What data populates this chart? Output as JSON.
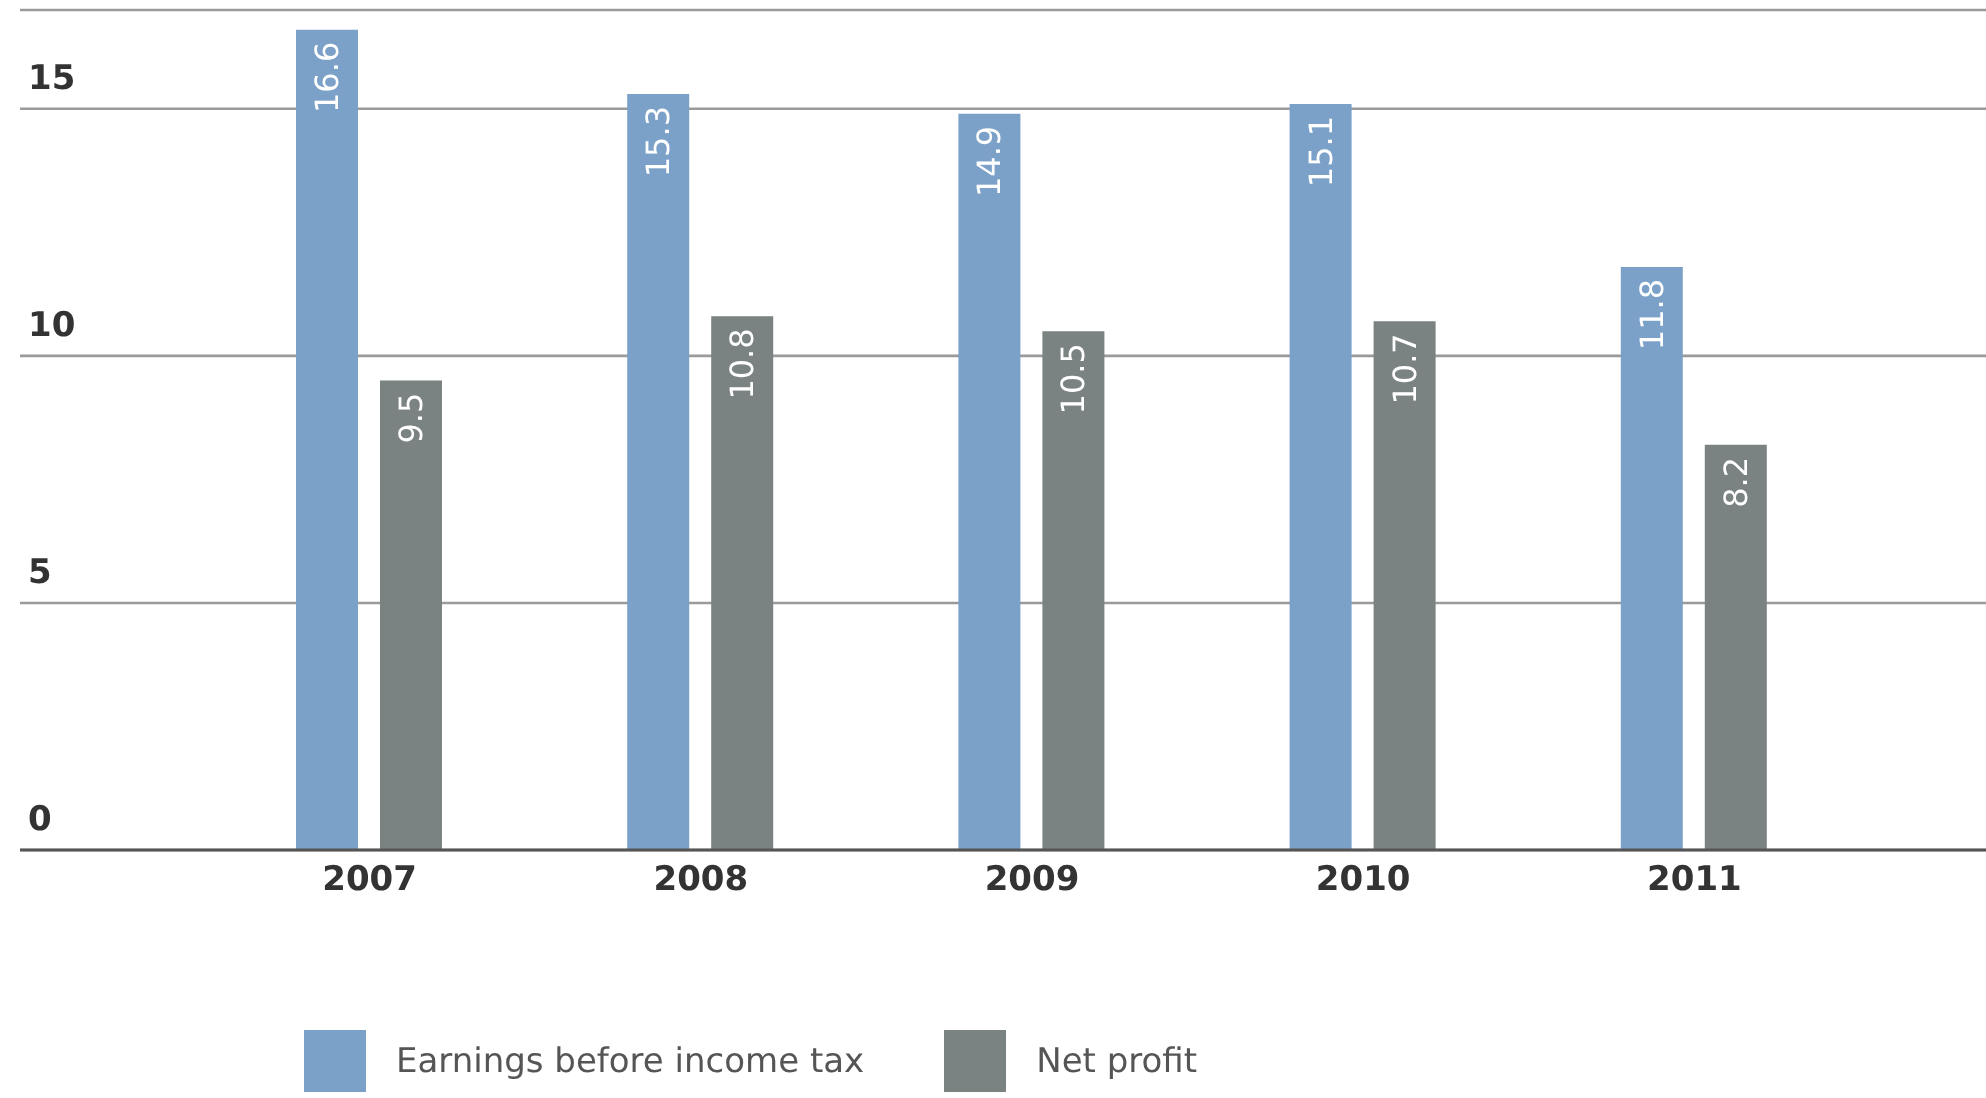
{
  "chart_data": {
    "type": "bar",
    "categories": [
      "2007",
      "2008",
      "2009",
      "2010",
      "2011"
    ],
    "series": [
      {
        "name": "Earnings before income tax",
        "color": "#7ba1c9",
        "values": [
          16.6,
          15.3,
          14.9,
          15.1,
          11.8
        ]
      },
      {
        "name": "Net profit",
        "color": "#7a8282",
        "values": [
          9.5,
          10.8,
          10.5,
          10.7,
          8.2
        ]
      }
    ],
    "ylim": [
      0,
      17
    ],
    "yticks": [
      0,
      5,
      10,
      15
    ],
    "grid": "y",
    "legend": "bottom",
    "data_labels": true
  }
}
